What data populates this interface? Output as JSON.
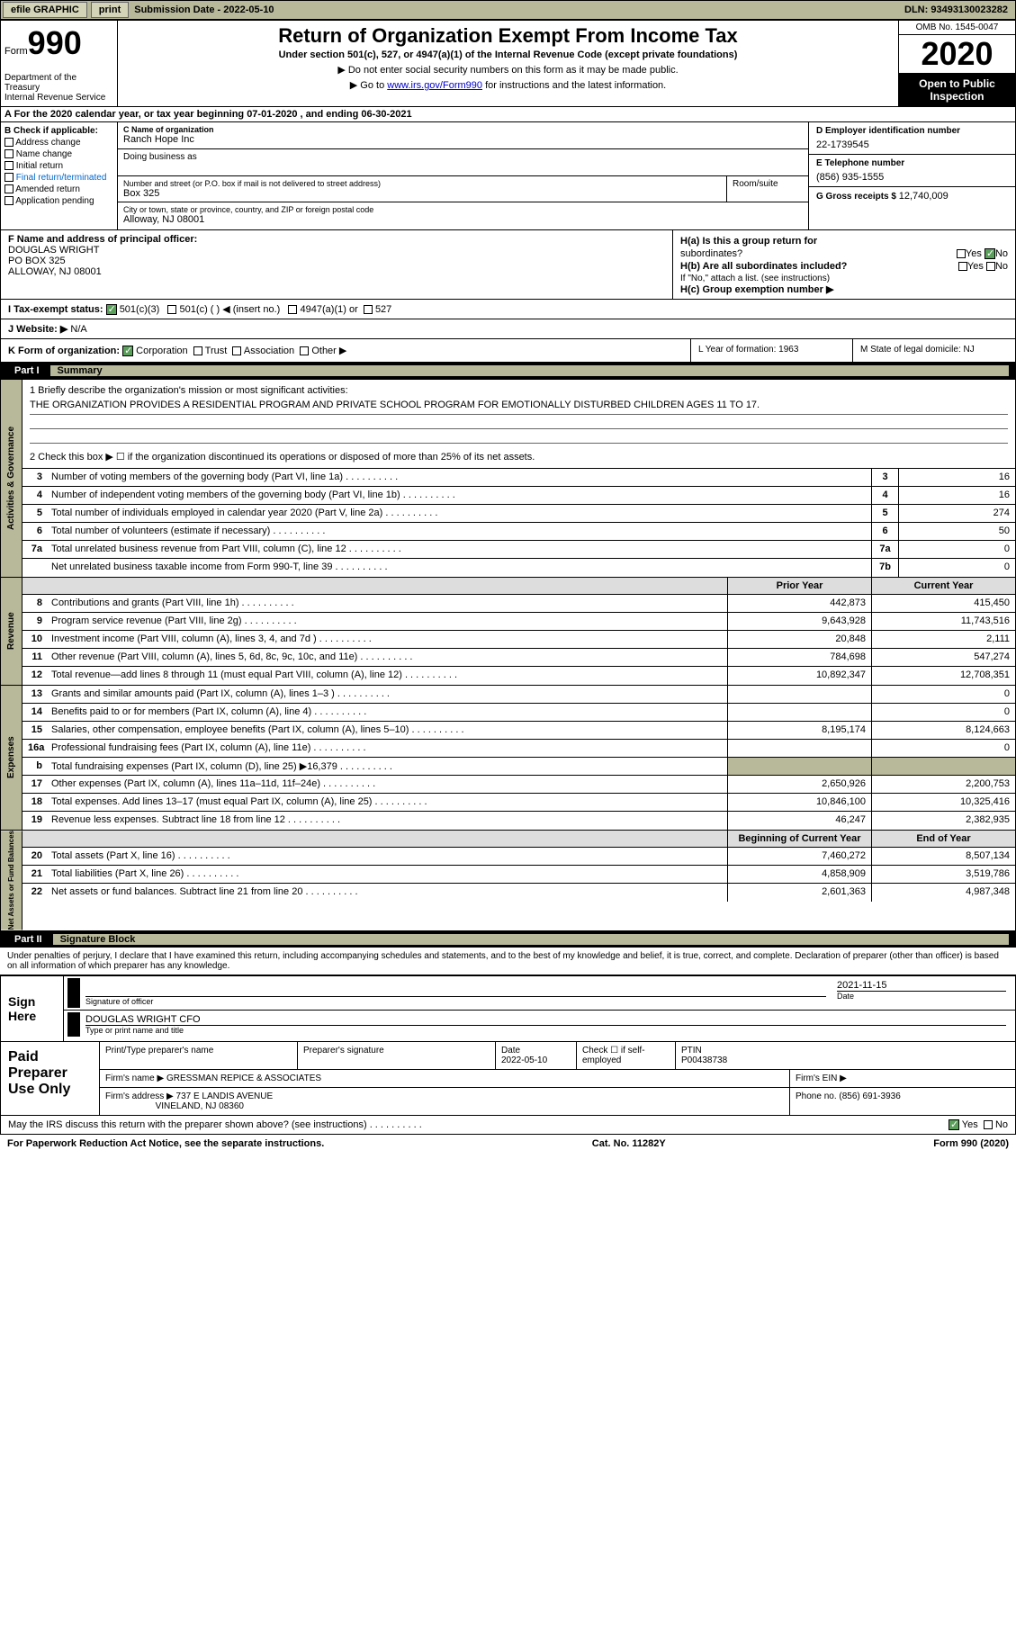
{
  "topbar": {
    "efile": "efile GRAPHIC",
    "print": "print",
    "submission_label": "Submission Date - ",
    "submission_date": "2022-05-10",
    "dln_label": "DLN: ",
    "dln": "93493130023282"
  },
  "header": {
    "form_prefix": "Form",
    "form_num": "990",
    "dept": "Department of the Treasury\nInternal Revenue Service",
    "title": "Return of Organization Exempt From Income Tax",
    "subtitle": "Under section 501(c), 527, or 4947(a)(1) of the Internal Revenue Code (except private foundations)",
    "inst1": "▶ Do not enter social security numbers on this form as it may be made public.",
    "inst2_pre": "▶ Go to ",
    "inst2_link": "www.irs.gov/Form990",
    "inst2_post": " for instructions and the latest information.",
    "omb": "OMB No. 1545-0047",
    "year": "2020",
    "inspection": "Open to Public Inspection"
  },
  "row_a": "A For the 2020 calendar year, or tax year beginning 07-01-2020   , and ending 06-30-2021",
  "col_b": {
    "header": "B Check if applicable:",
    "items": [
      "Address change",
      "Name change",
      "Initial return",
      "Final return/terminated",
      "Amended return",
      "Application pending"
    ]
  },
  "col_c": {
    "name_label": "C Name of organization",
    "name": "Ranch Hope Inc",
    "dba_label": "Doing business as",
    "dba": "",
    "addr_label": "Number and street (or P.O. box if mail is not delivered to street address)",
    "addr": "Box 325",
    "room_label": "Room/suite",
    "city_label": "City or town, state or province, country, and ZIP or foreign postal code",
    "city": "Alloway, NJ  08001"
  },
  "col_d": {
    "ein_label": "D Employer identification number",
    "ein": "22-1739545",
    "phone_label": "E Telephone number",
    "phone": "(856) 935-1555",
    "receipts_label": "G Gross receipts $ ",
    "receipts": "12,740,009"
  },
  "col_f": {
    "label": "F  Name and address of principal officer:",
    "name": "DOUGLAS WRIGHT",
    "addr1": "PO BOX 325",
    "addr2": "ALLOWAY, NJ  08001"
  },
  "col_h": {
    "ha": "H(a)  Is this a group return for",
    "ha2": "subordinates?",
    "hb": "H(b)  Are all subordinates included?",
    "hb_note": "If \"No,\" attach a list. (see instructions)",
    "hc": "H(c)  Group exemption number ▶",
    "yes": "Yes",
    "no": "No"
  },
  "row_i": {
    "label": "I   Tax-exempt status:",
    "opts": [
      "501(c)(3)",
      "501(c) (  ) ◀ (insert no.)",
      "4947(a)(1) or",
      "527"
    ]
  },
  "row_j": {
    "label": "J   Website: ▶",
    "val": "  N/A"
  },
  "row_k": {
    "label": "K Form of organization:",
    "opts": [
      "Corporation",
      "Trust",
      "Association",
      "Other ▶"
    ]
  },
  "row_l": "L Year of formation: 1963",
  "row_m": "M State of legal domicile: NJ",
  "part1": {
    "num": "Part I",
    "title": "Summary"
  },
  "mission": {
    "q1": "1  Briefly describe the organization's mission or most significant activities:",
    "text": "THE ORGANIZATION PROVIDES A RESIDENTIAL PROGRAM AND PRIVATE SCHOOL PROGRAM FOR EMOTIONALLY DISTURBED CHILDREN AGES 11 TO 17.",
    "q2": "2   Check this box ▶ ☐  if the organization discontinued its operations or disposed of more than 25% of its net assets."
  },
  "gov_rows": [
    {
      "n": "3",
      "label": "Number of voting members of the governing body (Part VI, line 1a)",
      "line": "3",
      "val": "16"
    },
    {
      "n": "4",
      "label": "Number of independent voting members of the governing body (Part VI, line 1b)",
      "line": "4",
      "val": "16"
    },
    {
      "n": "5",
      "label": "Total number of individuals employed in calendar year 2020 (Part V, line 2a)",
      "line": "5",
      "val": "274"
    },
    {
      "n": "6",
      "label": "Total number of volunteers (estimate if necessary)",
      "line": "6",
      "val": "50"
    },
    {
      "n": "7a",
      "label": "Total unrelated business revenue from Part VIII, column (C), line 12",
      "line": "7a",
      "val": "0"
    },
    {
      "n": "",
      "label": "Net unrelated business taxable income from Form 990-T, line 39",
      "line": "7b",
      "val": "0"
    }
  ],
  "col_headers": {
    "prior": "Prior Year",
    "current": "Current Year"
  },
  "rev_rows": [
    {
      "n": "8",
      "label": "Contributions and grants (Part VIII, line 1h)",
      "py": "442,873",
      "cy": "415,450"
    },
    {
      "n": "9",
      "label": "Program service revenue (Part VIII, line 2g)",
      "py": "9,643,928",
      "cy": "11,743,516"
    },
    {
      "n": "10",
      "label": "Investment income (Part VIII, column (A), lines 3, 4, and 7d )",
      "py": "20,848",
      "cy": "2,111"
    },
    {
      "n": "11",
      "label": "Other revenue (Part VIII, column (A), lines 5, 6d, 8c, 9c, 10c, and 11e)",
      "py": "784,698",
      "cy": "547,274"
    },
    {
      "n": "12",
      "label": "Total revenue—add lines 8 through 11 (must equal Part VIII, column (A), line 12)",
      "py": "10,892,347",
      "cy": "12,708,351"
    }
  ],
  "exp_rows": [
    {
      "n": "13",
      "label": "Grants and similar amounts paid (Part IX, column (A), lines 1–3 )",
      "py": "",
      "cy": "0"
    },
    {
      "n": "14",
      "label": "Benefits paid to or for members (Part IX, column (A), line 4)",
      "py": "",
      "cy": "0"
    },
    {
      "n": "15",
      "label": "Salaries, other compensation, employee benefits (Part IX, column (A), lines 5–10)",
      "py": "8,195,174",
      "cy": "8,124,663"
    },
    {
      "n": "16a",
      "label": "Professional fundraising fees (Part IX, column (A), line 11e)",
      "py": "",
      "cy": "0"
    },
    {
      "n": "b",
      "label": "Total fundraising expenses (Part IX, column (D), line 25) ▶16,379",
      "py": "shaded",
      "cy": "shaded"
    },
    {
      "n": "17",
      "label": "Other expenses (Part IX, column (A), lines 11a–11d, 11f–24e)",
      "py": "2,650,926",
      "cy": "2,200,753"
    },
    {
      "n": "18",
      "label": "Total expenses. Add lines 13–17 (must equal Part IX, column (A), line 25)",
      "py": "10,846,100",
      "cy": "10,325,416"
    },
    {
      "n": "19",
      "label": "Revenue less expenses. Subtract line 18 from line 12",
      "py": "46,247",
      "cy": "2,382,935"
    }
  ],
  "na_headers": {
    "begin": "Beginning of Current Year",
    "end": "End of Year"
  },
  "na_rows": [
    {
      "n": "20",
      "label": "Total assets (Part X, line 16)",
      "py": "7,460,272",
      "cy": "8,507,134"
    },
    {
      "n": "21",
      "label": "Total liabilities (Part X, line 26)",
      "py": "4,858,909",
      "cy": "3,519,786"
    },
    {
      "n": "22",
      "label": "Net assets or fund balances. Subtract line 21 from line 20",
      "py": "2,601,363",
      "cy": "4,987,348"
    }
  ],
  "side_labels": {
    "gov": "Activities & Governance",
    "rev": "Revenue",
    "exp": "Expenses",
    "na": "Net Assets or Fund Balances"
  },
  "part2": {
    "num": "Part II",
    "title": "Signature Block"
  },
  "sig": {
    "declaration": "Under penalties of perjury, I declare that I have examined this return, including accompanying schedules and statements, and to the best of my knowledge and belief, it is true, correct, and complete. Declaration of preparer (other than officer) is based on all information of which preparer has any knowledge.",
    "sign_here": "Sign Here",
    "officer_sig_label": "Signature of officer",
    "date_label": "Date",
    "officer_date": "2021-11-15",
    "officer_name": "DOUGLAS WRIGHT CFO",
    "officer_name_label": "Type or print name and title"
  },
  "preparer": {
    "left": "Paid Preparer Use Only",
    "name_label": "Print/Type preparer's name",
    "sig_label": "Preparer's signature",
    "date_label": "Date",
    "date": "2022-05-10",
    "check_label": "Check ☐ if self-employed",
    "ptin_label": "PTIN",
    "ptin": "P00438738",
    "firm_name_label": "Firm's name    ▶",
    "firm_name": "GRESSMAN REPICE & ASSOCIATES",
    "firm_ein_label": "Firm's EIN ▶",
    "firm_addr_label": "Firm's address ▶",
    "firm_addr1": "737 E LANDIS AVENUE",
    "firm_addr2": "VINELAND, NJ  08360",
    "phone_label": "Phone no. ",
    "phone": "(856) 691-3936"
  },
  "footer": {
    "discuss": "May the IRS discuss this return with the preparer shown above? (see instructions)",
    "yes": "Yes",
    "no": "No",
    "paperwork": "For Paperwork Reduction Act Notice, see the separate instructions.",
    "cat": "Cat. No. 11282Y",
    "form": "Form 990 (2020)"
  }
}
